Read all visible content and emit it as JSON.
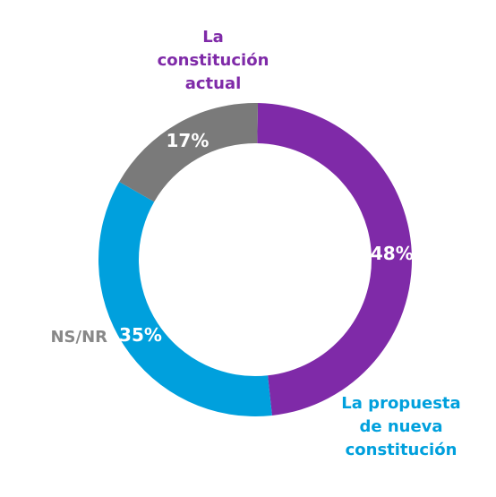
{
  "chart_data": {
    "type": "pie",
    "variant": "donut",
    "title": "",
    "slices": [
      {
        "label_lines": [
          "La",
          "constitución",
          "actual"
        ],
        "value": 48,
        "display": "48%",
        "color": "#7f2aa8"
      },
      {
        "label_lines": [
          "La propuesta",
          "de nueva",
          "constitución"
        ],
        "value": 35,
        "display": "35%",
        "color": "#00a0dd"
      },
      {
        "label_lines": [
          "NS/NR"
        ],
        "value": 17,
        "display": "17%",
        "color": "#7a7a7a",
        "label_color": "#888888"
      }
    ]
  }
}
